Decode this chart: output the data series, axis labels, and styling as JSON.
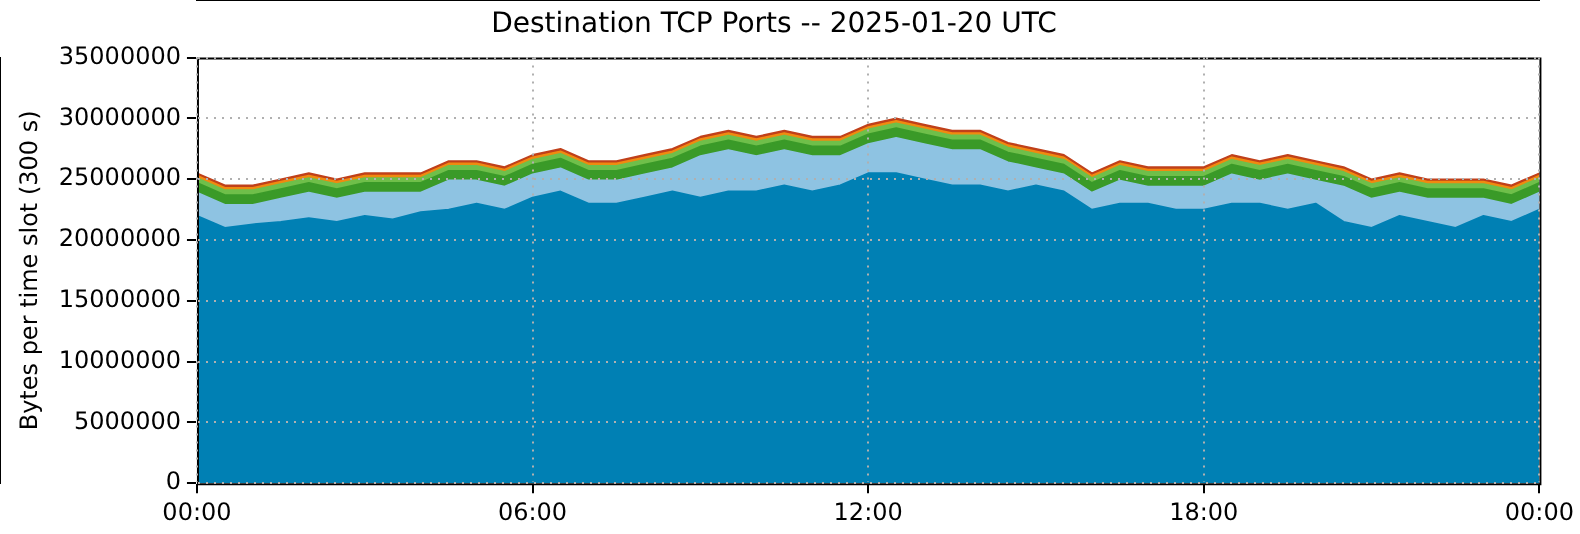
{
  "chart_data": {
    "type": "area",
    "title": "Destination TCP Ports -- 2025-01-20 UTC",
    "ylabel": "Bytes per time slot (300 s)",
    "stacked": true,
    "grid": true,
    "legend": false,
    "x": [
      0,
      0.5,
      1,
      1.5,
      2,
      2.5,
      3,
      3.5,
      4,
      4.5,
      5,
      5.5,
      6,
      6.5,
      7,
      7.5,
      8,
      8.5,
      9,
      9.5,
      10,
      10.5,
      11,
      11.5,
      12,
      12.5,
      13,
      13.5,
      14,
      14.5,
      15,
      15.5,
      16,
      16.5,
      17,
      17.5,
      18,
      18.5,
      19,
      19.5,
      20,
      20.5,
      21,
      21.5,
      22,
      22.5,
      23,
      23.5,
      24
    ],
    "xlim": [
      0,
      24
    ],
    "xticks": [
      {
        "value": 0,
        "label": "00:00"
      },
      {
        "value": 6,
        "label": "06:00"
      },
      {
        "value": 12,
        "label": "12:00"
      },
      {
        "value": 18,
        "label": "18:00"
      },
      {
        "value": 24,
        "label": "00:00"
      }
    ],
    "ylim": [
      0,
      35000000
    ],
    "yticks": [
      0,
      5000000,
      10000000,
      15000000,
      20000000,
      25000000,
      30000000,
      35000000
    ],
    "series": [
      {
        "color": "#0080b4",
        "values": [
          22000000,
          21000000,
          21300000,
          21500000,
          21800000,
          21500000,
          22000000,
          21700000,
          22300000,
          22500000,
          23000000,
          22500000,
          23500000,
          24000000,
          23000000,
          23000000,
          23500000,
          24000000,
          23500000,
          24000000,
          24000000,
          24500000,
          24000000,
          24500000,
          25500000,
          25500000,
          25000000,
          24500000,
          24500000,
          24000000,
          24500000,
          24000000,
          22500000,
          23000000,
          23000000,
          22500000,
          22500000,
          23000000,
          23000000,
          22500000,
          23000000,
          21500000,
          21000000,
          22000000,
          21500000,
          21000000,
          22000000,
          21500000,
          22500000
        ]
      },
      {
        "color": "#8ec3e2",
        "values": [
          1900000,
          1900000,
          1600000,
          1900000,
          2100000,
          1900000,
          1900000,
          2200000,
          1600000,
          2400000,
          1900000,
          1900000,
          1900000,
          1900000,
          1900000,
          1900000,
          1900000,
          1900000,
          3400000,
          3400000,
          2900000,
          2900000,
          2900000,
          2400000,
          2400000,
          2900000,
          2900000,
          2900000,
          2900000,
          2400000,
          1400000,
          1400000,
          1400000,
          1900000,
          1400000,
          1900000,
          1900000,
          2400000,
          1900000,
          2900000,
          1900000,
          2900000,
          2400000,
          1900000,
          1900000,
          2400000,
          1400000,
          1400000,
          1400000
        ]
      },
      {
        "color": "#3a9a28",
        "values": [
          800000,
          800000,
          800000,
          800000,
          800000,
          800000,
          800000,
          800000,
          800000,
          800000,
          800000,
          800000,
          800000,
          800000,
          800000,
          800000,
          800000,
          800000,
          800000,
          800000,
          800000,
          800000,
          800000,
          800000,
          800000,
          800000,
          800000,
          800000,
          800000,
          800000,
          800000,
          800000,
          800000,
          800000,
          800000,
          800000,
          800000,
          800000,
          800000,
          800000,
          800000,
          800000,
          800000,
          800000,
          800000,
          800000,
          800000,
          800000,
          800000
        ]
      },
      {
        "color": "#6fbf4a",
        "values": [
          400000,
          400000,
          400000,
          400000,
          400000,
          400000,
          400000,
          400000,
          400000,
          400000,
          400000,
          400000,
          400000,
          400000,
          400000,
          400000,
          400000,
          400000,
          400000,
          400000,
          400000,
          400000,
          400000,
          400000,
          400000,
          400000,
          400000,
          400000,
          400000,
          400000,
          400000,
          400000,
          400000,
          400000,
          400000,
          400000,
          400000,
          400000,
          400000,
          400000,
          400000,
          400000,
          400000,
          400000,
          400000,
          400000,
          400000,
          400000,
          400000
        ]
      },
      {
        "color": "#f08a10",
        "values": [
          200000,
          200000,
          200000,
          200000,
          200000,
          200000,
          200000,
          200000,
          200000,
          200000,
          200000,
          200000,
          200000,
          200000,
          200000,
          200000,
          200000,
          200000,
          200000,
          200000,
          200000,
          200000,
          200000,
          200000,
          200000,
          200000,
          200000,
          200000,
          200000,
          200000,
          200000,
          200000,
          200000,
          200000,
          200000,
          200000,
          200000,
          200000,
          200000,
          200000,
          200000,
          200000,
          200000,
          200000,
          200000,
          200000,
          200000,
          200000,
          200000
        ]
      },
      {
        "color": "#c0401a",
        "values": [
          200000,
          200000,
          200000,
          200000,
          200000,
          200000,
          200000,
          200000,
          200000,
          200000,
          200000,
          200000,
          200000,
          200000,
          200000,
          200000,
          200000,
          200000,
          200000,
          200000,
          200000,
          200000,
          200000,
          200000,
          200000,
          200000,
          200000,
          200000,
          200000,
          200000,
          200000,
          200000,
          200000,
          200000,
          200000,
          200000,
          200000,
          200000,
          200000,
          200000,
          200000,
          200000,
          200000,
          200000,
          200000,
          200000,
          200000,
          200000,
          200000
        ]
      }
    ]
  }
}
